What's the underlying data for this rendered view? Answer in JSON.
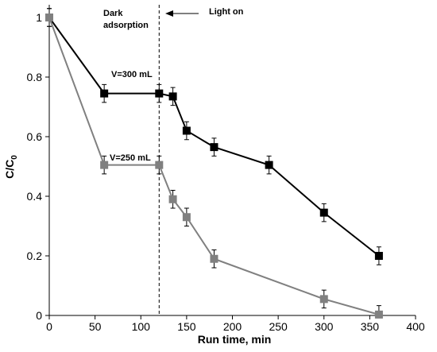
{
  "chart_data": {
    "type": "line",
    "xlabel": "Run time, min",
    "ylabel_main": "C/C",
    "ylabel_sub": "0",
    "xlim": [
      0,
      400
    ],
    "ylim": [
      0,
      1
    ],
    "xticks": [
      0,
      50,
      100,
      150,
      200,
      250,
      300,
      350,
      400
    ],
    "yticks": [
      0,
      0.2,
      0.4,
      0.6,
      0.8,
      1
    ],
    "ytick_labels": [
      "0",
      "0.2",
      "0.4",
      "0.6",
      "0.8",
      "1"
    ],
    "grid": false,
    "series": [
      {
        "name": "V=300 mL",
        "color": "#000000",
        "marker": "square",
        "x": [
          0,
          60,
          120,
          135,
          150,
          180,
          240,
          300,
          360
        ],
        "y": [
          1.0,
          0.745,
          0.745,
          0.735,
          0.62,
          0.565,
          0.505,
          0.345,
          0.2
        ],
        "error": [
          0.03,
          0.03,
          0.03,
          0.03,
          0.03,
          0.03,
          0.03,
          0.03,
          0.03
        ]
      },
      {
        "name": "V=250 mL",
        "color": "#808080",
        "marker": "square",
        "x": [
          0,
          60,
          120,
          135,
          150,
          180,
          300,
          360
        ],
        "y": [
          1.0,
          0.505,
          0.505,
          0.39,
          0.33,
          0.19,
          0.055,
          0.003
        ],
        "error": [
          0.03,
          0.03,
          0.03,
          0.03,
          0.03,
          0.03,
          0.03,
          0.03
        ]
      }
    ],
    "annotations": {
      "dark_line1": "Dark",
      "dark_line2": "adsorption",
      "light_on": "Light on",
      "divider_x": 120
    }
  }
}
